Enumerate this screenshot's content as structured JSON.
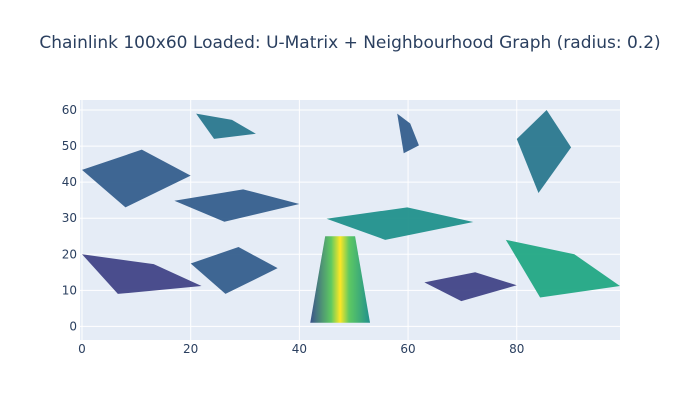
{
  "chart_data": {
    "type": "heatmap",
    "title": "Chainlink 100x60 Loaded: U-Matrix + Neighbourhood Graph (radius: 0.2)",
    "xlabel": "",
    "ylabel": "",
    "xlim": [
      0,
      99
    ],
    "ylim": [
      -1,
      60
    ],
    "x_ticks": [
      0,
      20,
      40,
      60,
      80
    ],
    "y_ticks": [
      0,
      10,
      20,
      30,
      40,
      50,
      60
    ],
    "grid": true,
    "colorscale": "viridis",
    "background_color": "#e5ecf6",
    "visible_regions": [
      {
        "label": "upper-left band",
        "x": [
          0,
          20
        ],
        "y": [
          33,
          49
        ],
        "value": 0.25
      },
      {
        "label": "top patch",
        "x": [
          21,
          32
        ],
        "y": [
          52,
          59
        ],
        "value": 0.35
      },
      {
        "label": "mid-left diagonal",
        "x": [
          17,
          40
        ],
        "y": [
          29,
          38
        ],
        "value": 0.3
      },
      {
        "label": "left lower band",
        "x": [
          0,
          22
        ],
        "y": [
          9,
          20
        ],
        "value": 0.2
      },
      {
        "label": "lower-middle wedge",
        "x": [
          20,
          36
        ],
        "y": [
          9,
          22
        ],
        "value": 0.3
      },
      {
        "label": "bright vertical column",
        "x": [
          42,
          53
        ],
        "y": [
          1,
          25
        ],
        "value": 0.85
      },
      {
        "label": "center band",
        "x": [
          45,
          72
        ],
        "y": [
          24,
          33
        ],
        "value": 0.45
      },
      {
        "label": "upper-center patch",
        "x": [
          58,
          62
        ],
        "y": [
          48,
          59
        ],
        "value": 0.3
      },
      {
        "label": "upper-right column",
        "x": [
          80,
          90
        ],
        "y": [
          37,
          60
        ],
        "value": 0.4
      },
      {
        "label": "right lower region",
        "x": [
          78,
          99
        ],
        "y": [
          8,
          24
        ],
        "value": 0.6
      },
      {
        "label": "lower-right strip",
        "x": [
          63,
          80
        ],
        "y": [
          7,
          15
        ],
        "value": 0.2
      }
    ]
  }
}
